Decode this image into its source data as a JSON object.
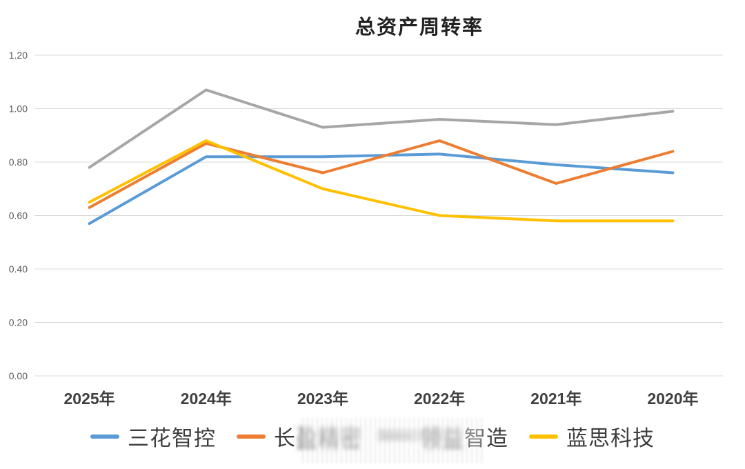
{
  "chart_data": {
    "type": "line",
    "title": "总资产周转率",
    "categories": [
      "2025年",
      "2024年",
      "2023年",
      "2022年",
      "2021年",
      "2020年"
    ],
    "series": [
      {
        "name": "三花智控",
        "color": "#5B9BD5",
        "values": [
          0.57,
          0.82,
          0.82,
          0.83,
          0.79,
          0.76
        ]
      },
      {
        "name": "长盈精密",
        "color": "#ED7D31",
        "values": [
          0.63,
          0.87,
          0.76,
          0.88,
          0.72,
          0.84
        ],
        "legend_parts": [
          {
            "text": "长",
            "blurred": false
          },
          {
            "text": "盈精密",
            "blurred": true
          }
        ]
      },
      {
        "name": "领益智造",
        "color": "#A6A6A6",
        "marker_blurred": true,
        "values": [
          0.78,
          1.07,
          0.93,
          0.96,
          0.94,
          0.99
        ],
        "legend_parts": [
          {
            "text": "领益",
            "blurred": true
          },
          {
            "text": "智造",
            "blurred": false
          }
        ]
      },
      {
        "name": "蓝思科技",
        "color": "#FFC000",
        "values": [
          0.65,
          0.88,
          0.7,
          0.6,
          0.58,
          0.58
        ]
      }
    ],
    "ylim": [
      0,
      1.2
    ],
    "ytick_step": 0.2,
    "ytick_labels": [
      "0.00",
      "0.20",
      "0.40",
      "0.60",
      "0.80",
      "1.00",
      "1.20"
    ],
    "grid": true,
    "legend_position": "bottom",
    "grid_color": "#D9D9D9",
    "ytick_color": "#595959",
    "category_label_color": "#3f3f3f",
    "title_color": "#212121"
  }
}
